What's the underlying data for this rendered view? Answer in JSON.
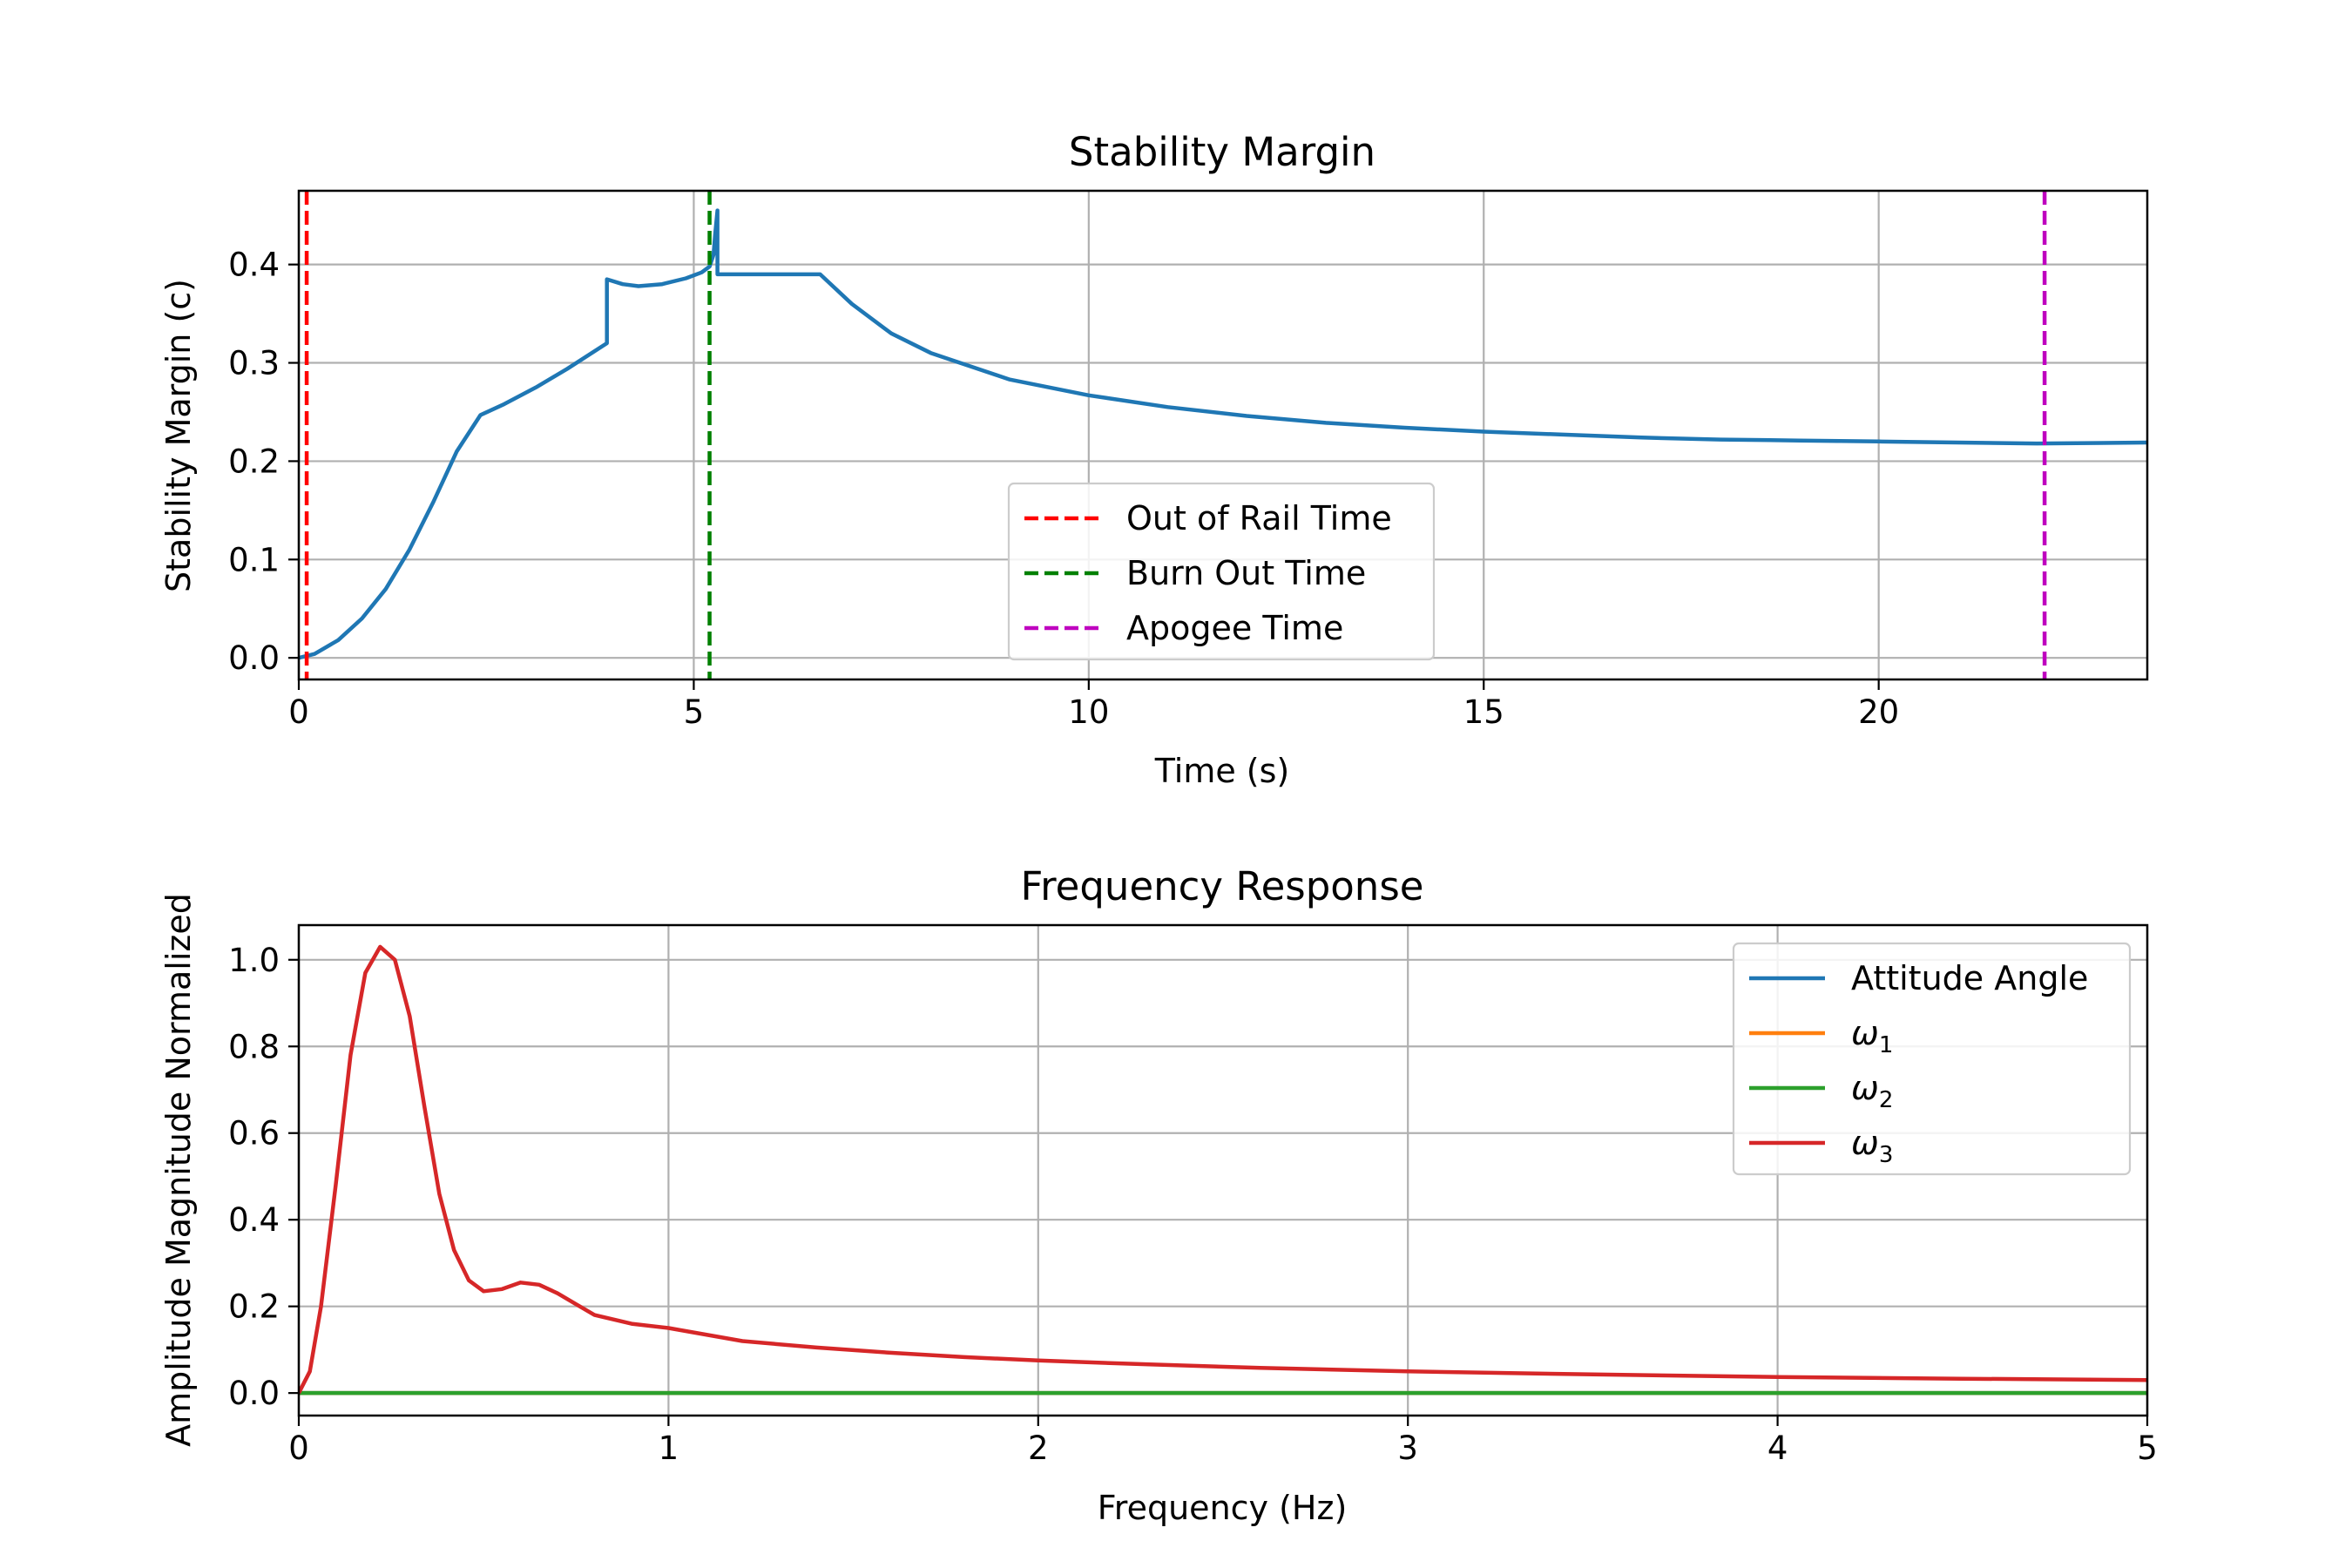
{
  "chart_data": [
    {
      "type": "line",
      "title": "Stability Margin",
      "xlabel": "Time (s)",
      "ylabel": "Stability Margin (c)",
      "xlim": [
        0,
        23.4
      ],
      "ylim": [
        -0.022,
        0.475
      ],
      "xticks": [
        0,
        5,
        10,
        15,
        20
      ],
      "yticks": [
        0.0,
        0.1,
        0.2,
        0.3,
        0.4
      ],
      "xtick_labels": [
        "0",
        "5",
        "10",
        "15",
        "20"
      ],
      "ytick_labels": [
        "0.0",
        "0.1",
        "0.2",
        "0.3",
        "0.4"
      ],
      "grid": true,
      "legend_position": "lower-center",
      "series": [
        {
          "color": "#1f77b4",
          "style": "solid",
          "x": [
            0,
            0.2,
            0.5,
            0.8,
            1.1,
            1.4,
            1.7,
            2.0,
            2.3,
            2.6,
            3.0,
            3.4,
            3.9,
            3.9,
            4.1,
            4.3,
            4.6,
            4.9,
            5.1,
            5.2,
            5.25,
            5.27,
            5.3,
            5.3,
            5.6,
            6.0,
            6.6,
            7.0,
            7.5,
            8.0,
            9.0,
            10.0,
            11.0,
            12.0,
            13.0,
            14.0,
            15.0,
            16.0,
            17.0,
            18.0,
            19.0,
            20.0,
            21.0,
            22.0,
            23.4
          ],
          "y": [
            0.0,
            0.004,
            0.018,
            0.04,
            0.07,
            0.11,
            0.158,
            0.21,
            0.247,
            0.258,
            0.275,
            0.294,
            0.32,
            0.385,
            0.38,
            0.378,
            0.38,
            0.386,
            0.392,
            0.398,
            0.41,
            0.43,
            0.455,
            0.39,
            0.39,
            0.39,
            0.39,
            0.36,
            0.33,
            0.31,
            0.283,
            0.267,
            0.255,
            0.246,
            0.239,
            0.234,
            0.23,
            0.227,
            0.224,
            0.222,
            0.221,
            0.22,
            0.219,
            0.218,
            0.219
          ]
        },
        {
          "name": "Out of Rail Time",
          "color": "#ff0000",
          "style": "dashed",
          "vline_x": 0.1
        },
        {
          "name": "Burn Out Time",
          "color": "#008000",
          "style": "dashed",
          "vline_x": 5.2
        },
        {
          "name": "Apogee Time",
          "color": "#bf00bf",
          "style": "dashed",
          "vline_x": 22.1
        }
      ]
    },
    {
      "type": "line",
      "title": "Frequency Response",
      "xlabel": "Frequency (Hz)",
      "ylabel": "Amplitude Magnitude Normalized",
      "xlim": [
        0,
        5
      ],
      "ylim": [
        -0.052,
        1.08
      ],
      "xticks": [
        0,
        1,
        2,
        3,
        4,
        5
      ],
      "yticks": [
        0.0,
        0.2,
        0.4,
        0.6,
        0.8,
        1.0
      ],
      "xtick_labels": [
        "0",
        "1",
        "2",
        "3",
        "4",
        "5"
      ],
      "ytick_labels": [
        "0.0",
        "0.2",
        "0.4",
        "0.6",
        "0.8",
        "1.0"
      ],
      "grid": true,
      "legend_position": "upper-right",
      "series": [
        {
          "name": "Attitude Angle",
          "legend_main": "Attitude Angle",
          "color": "#1f77b4",
          "x": [
            0,
            5
          ],
          "y": [
            0,
            0
          ]
        },
        {
          "name": "ω1",
          "legend_main": "ω",
          "legend_sub": "1",
          "color": "#ff7f0e",
          "x": [
            0,
            5
          ],
          "y": [
            0,
            0
          ]
        },
        {
          "name": "ω2",
          "legend_main": "ω",
          "legend_sub": "2",
          "color": "#2ca02c",
          "x": [
            0,
            5
          ],
          "y": [
            0,
            0
          ]
        },
        {
          "name": "ω3",
          "legend_main": "ω",
          "legend_sub": "3",
          "color": "#d62728",
          "x": [
            0,
            0.03,
            0.06,
            0.1,
            0.14,
            0.18,
            0.22,
            0.26,
            0.3,
            0.34,
            0.38,
            0.42,
            0.46,
            0.5,
            0.55,
            0.6,
            0.65,
            0.7,
            0.75,
            0.8,
            0.9,
            1.0,
            1.1,
            1.2,
            1.4,
            1.6,
            1.8,
            2.0,
            2.3,
            2.6,
            3.0,
            3.5,
            4.0,
            4.5,
            5.0
          ],
          "y": [
            0.0,
            0.05,
            0.2,
            0.48,
            0.78,
            0.97,
            1.03,
            1.0,
            0.87,
            0.66,
            0.46,
            0.33,
            0.26,
            0.235,
            0.24,
            0.255,
            0.25,
            0.23,
            0.205,
            0.18,
            0.16,
            0.15,
            0.135,
            0.12,
            0.105,
            0.093,
            0.083,
            0.075,
            0.066,
            0.058,
            0.05,
            0.043,
            0.037,
            0.033,
            0.03
          ]
        }
      ]
    }
  ]
}
